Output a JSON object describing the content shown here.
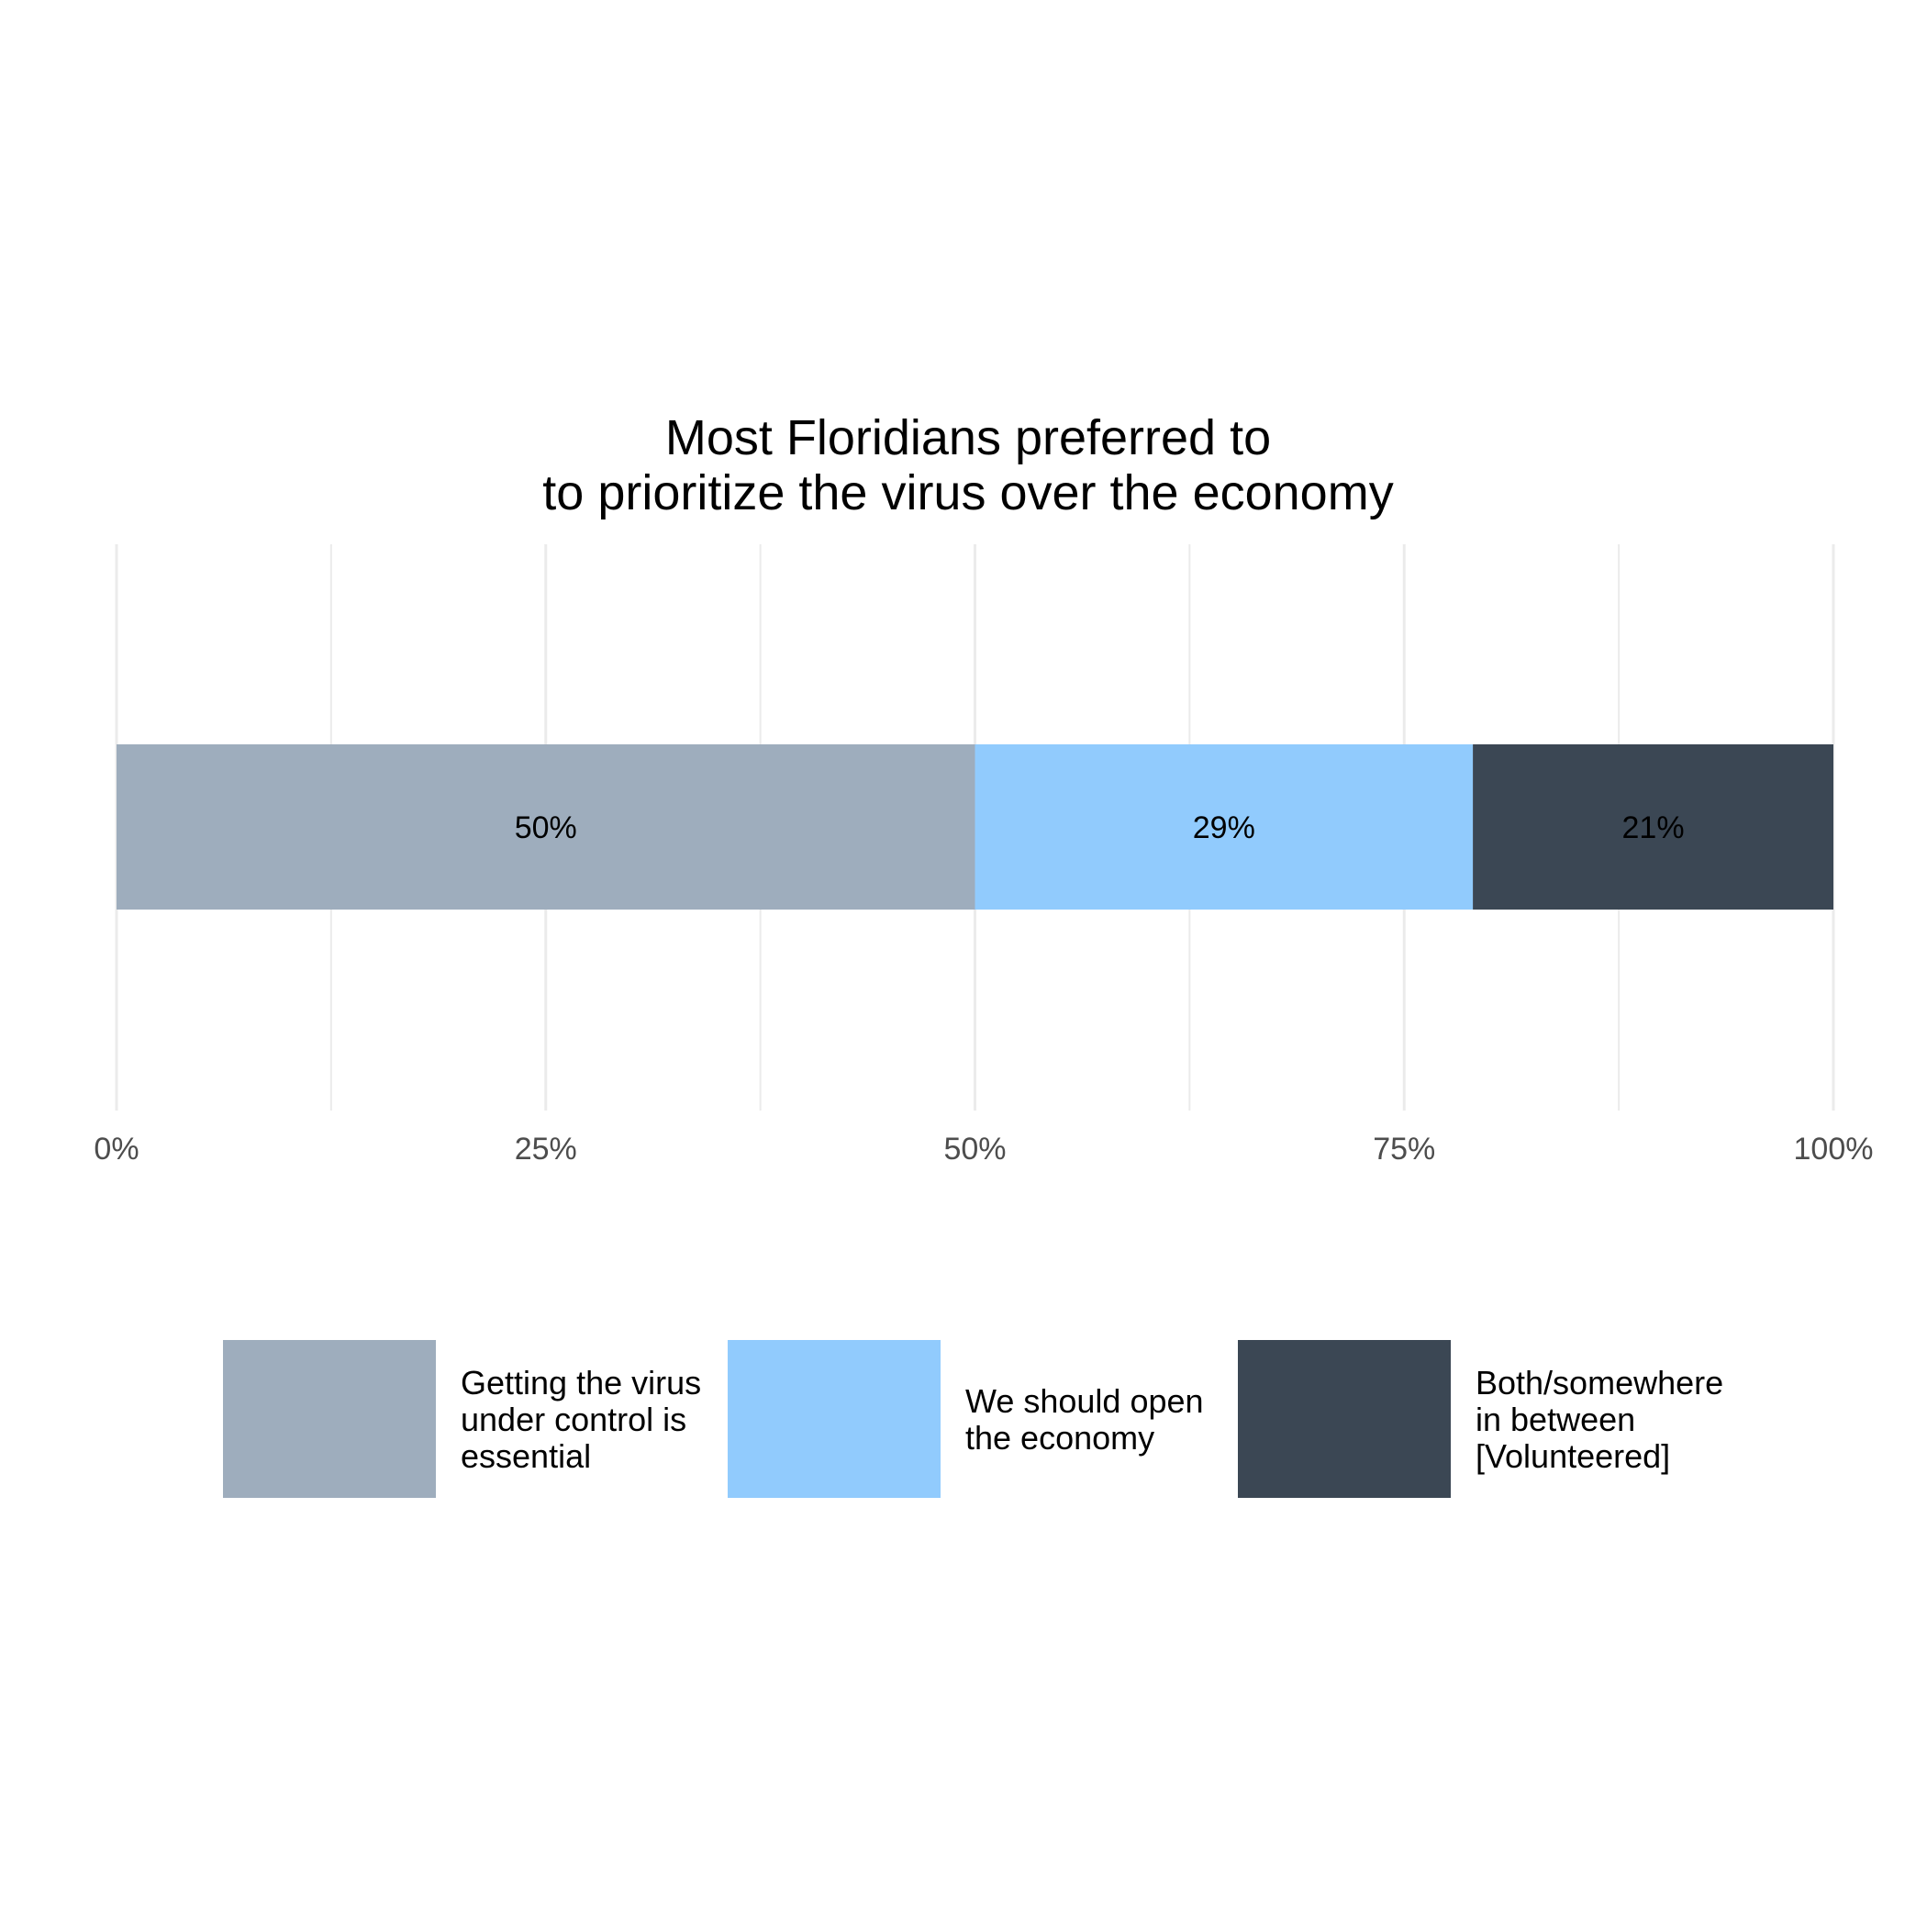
{
  "chart_data": {
    "type": "bar",
    "orientation": "horizontal",
    "stacked": true,
    "title": "Most Floridians preferred to\nto prioritize the virus over the economy",
    "title_lines": [
      "Most Floridians preferred to",
      "to prioritize the virus over the economy"
    ],
    "xlabel": "",
    "ylabel": "",
    "xlim": [
      0,
      100
    ],
    "grid": true,
    "x_ticks": [
      0,
      25,
      50,
      75,
      100
    ],
    "x_tick_labels": [
      "0%",
      "25%",
      "50%",
      "75%",
      "100%"
    ],
    "legend_position": "bottom",
    "series": [
      {
        "name": "Getting the virus under control is essential",
        "legend_lines": [
          "Getting the virus",
          "under control is",
          "essential"
        ],
        "value": 50,
        "label": "50%",
        "color": "#9eadbd"
      },
      {
        "name": "We should open the economy",
        "legend_lines": [
          "We should open",
          "the economy"
        ],
        "value": 29,
        "label": "29%",
        "color": "#91cbfd"
      },
      {
        "name": "Both/somewhere in between [Volunteered]",
        "legend_lines": [
          "Both/somewhere",
          "in between",
          "[Volunteered]"
        ],
        "value": 21,
        "label": "21%",
        "color": "#3b4754"
      }
    ]
  }
}
